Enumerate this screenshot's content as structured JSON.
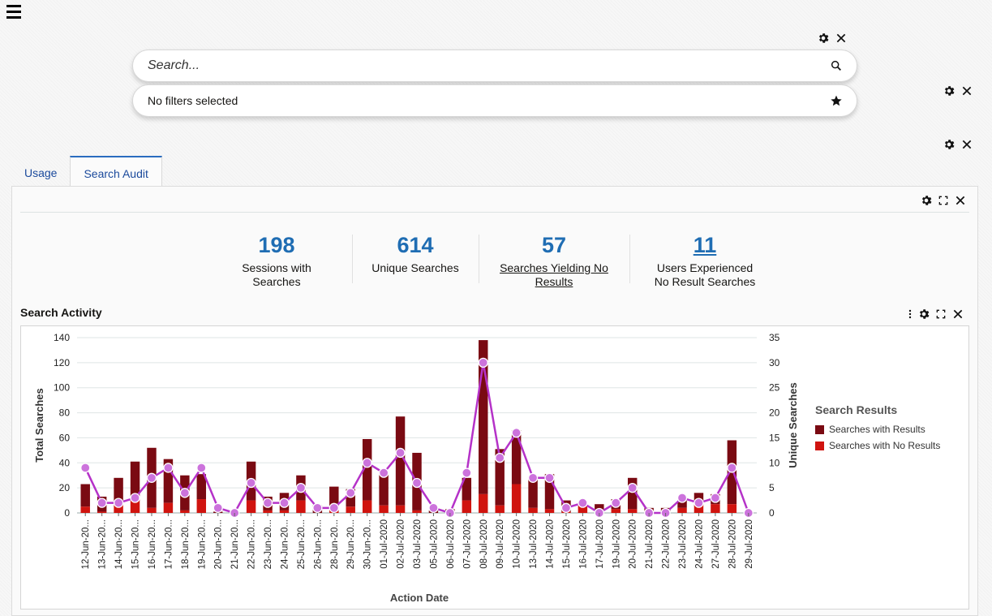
{
  "header": {
    "menu_icon": "hamburger-menu-icon"
  },
  "search": {
    "placeholder": "Search...",
    "value": "",
    "search_icon": "magnifier-icon"
  },
  "filters": {
    "text": "No filters selected",
    "favorite_icon": "star-icon"
  },
  "widget_controls": {
    "settings_icon": "gear-icon",
    "close_icon": "close-icon",
    "maximize_icon": "expand-icon",
    "more_icon": "vertical-dots-icon"
  },
  "tabs": [
    {
      "label": "Usage",
      "active": false
    },
    {
      "label": "Search Audit",
      "active": true
    }
  ],
  "kpis": [
    {
      "value": "198",
      "label_line1": "Sessions with",
      "label_line2": "Searches",
      "link": false
    },
    {
      "value": "614",
      "label_line1": "Unique Searches",
      "label_line2": "",
      "link": false
    },
    {
      "value": "57",
      "label_line1": "Searches Yielding No",
      "label_line2": "Results",
      "link": true
    },
    {
      "value": "11",
      "label_line1": "Users Experienced",
      "label_line2": "No Result Searches",
      "link": true
    }
  ],
  "section": {
    "title": "Search Activity"
  },
  "colors": {
    "kpi_blue": "#1f6db3",
    "with_results": "#7a0a12",
    "no_results": "#d0140f",
    "line": "#b532c8",
    "marker": "#cc73dc",
    "tab_accent": "#2a6cbf"
  },
  "chart_data": {
    "type": "bar",
    "stacked": true,
    "title": "Search Activity",
    "xlabel": "Action Date",
    "ylabel": "Total Searches",
    "y2label": "Unique Searches",
    "ylim": [
      0,
      140
    ],
    "y2lim": [
      0,
      35
    ],
    "yticks": [
      0,
      20,
      40,
      60,
      80,
      100,
      120,
      140
    ],
    "y2ticks": [
      0,
      5,
      10,
      15,
      20,
      25,
      30,
      35
    ],
    "grid": true,
    "legend": {
      "title": "Search Results",
      "position": "right"
    },
    "categories": [
      "12-Jun-20...",
      "13-Jun-20...",
      "14-Jun-20...",
      "15-Jun-20...",
      "16-Jun-20...",
      "17-Jun-20...",
      "18-Jun-20...",
      "19-Jun-20...",
      "20-Jun-20...",
      "21-Jun-20...",
      "22-Jun-20...",
      "23-Jun-20...",
      "24-Jun-20...",
      "25-Jun-20...",
      "26-Jun-20...",
      "28-Jun-20...",
      "29-Jun-20...",
      "30-Jun-20...",
      "01-Jul-2020",
      "02-Jul-2020",
      "03-Jul-2020",
      "05-Jul-2020",
      "06-Jul-2020",
      "07-Jul-2020",
      "08-Jul-2020",
      "09-Jul-2020",
      "10-Jul-2020",
      "13-Jul-2020",
      "14-Jul-2020",
      "15-Jul-2020",
      "16-Jul-2020",
      "17-Jul-2020",
      "19-Jul-2020",
      "20-Jul-2020",
      "21-Jul-2020",
      "22-Jul-2020",
      "23-Jul-2020",
      "24-Jul-2020",
      "27-Jul-2020",
      "28-Jul-2020",
      "29-Jul-2020"
    ],
    "series": [
      {
        "name": "Searches with Results",
        "type": "bar",
        "axis": "left",
        "values": [
          18,
          12,
          22,
          31,
          48,
          35,
          28,
          20,
          1,
          1,
          31,
          11,
          14,
          20,
          6,
          19,
          14,
          49,
          25,
          71,
          46,
          2,
          3,
          18,
          123,
          45,
          43,
          25,
          28,
          9,
          0,
          7,
          8,
          25,
          4,
          4,
          6,
          10,
          8,
          51,
          1
        ]
      },
      {
        "name": "Searches with No Results",
        "type": "bar",
        "axis": "left",
        "values": [
          5,
          1,
          6,
          10,
          4,
          8,
          2,
          11,
          0,
          0,
          10,
          2,
          2,
          10,
          0,
          2,
          5,
          10,
          6,
          6,
          2,
          0,
          0,
          10,
          15,
          6,
          23,
          4,
          3,
          1,
          6,
          0,
          3,
          3,
          0,
          0,
          4,
          6,
          7,
          7,
          0
        ]
      },
      {
        "name": "Unique Searches",
        "type": "line",
        "axis": "right",
        "values": [
          9,
          2,
          2,
          3,
          7,
          9,
          4,
          9,
          1,
          0,
          6,
          2,
          2,
          5,
          1,
          1,
          4,
          10,
          8,
          12,
          6,
          1,
          0,
          8,
          30,
          11,
          16,
          7,
          7,
          1,
          2,
          0,
          2,
          5,
          0,
          0,
          3,
          2,
          3,
          9,
          0
        ]
      }
    ]
  }
}
